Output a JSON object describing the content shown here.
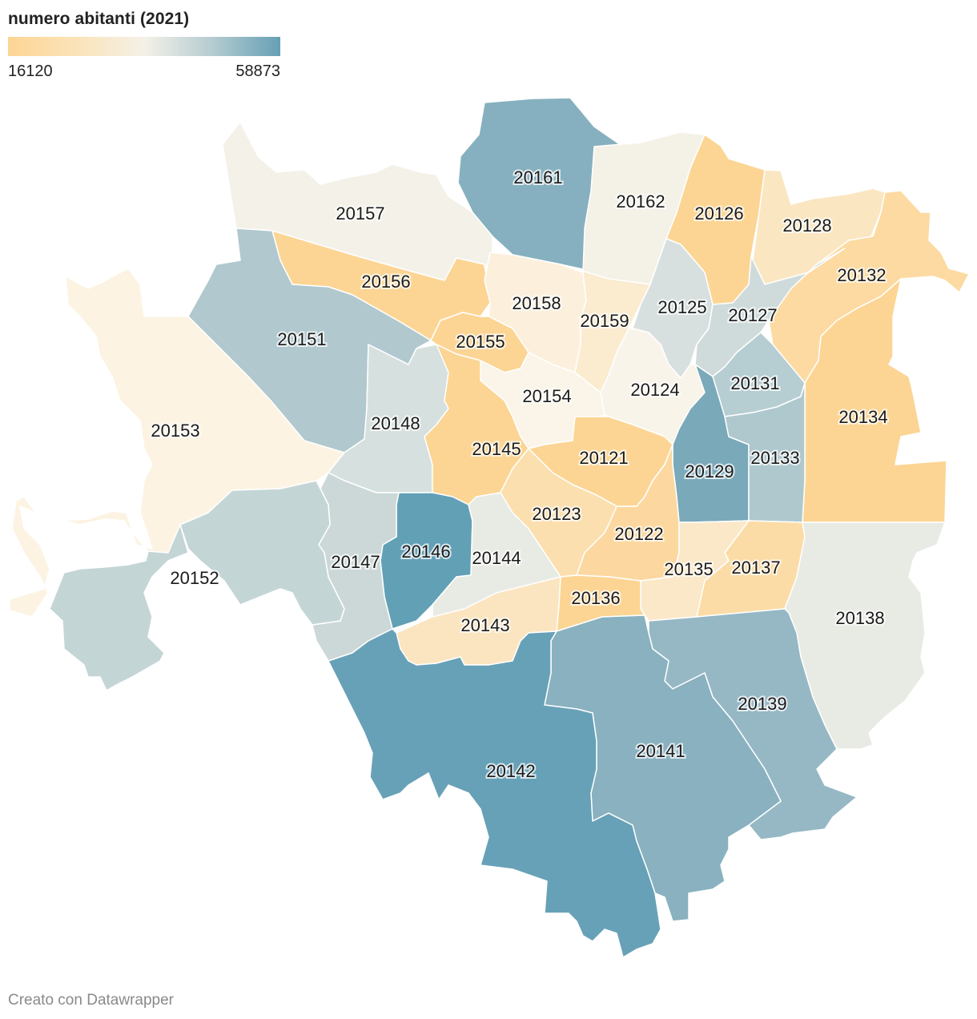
{
  "legend": {
    "title": "numero abitanti (2021)",
    "min_label": "16120",
    "max_label": "58873",
    "colors": [
      "#fcd594",
      "#fbe3b8",
      "#f4f1e7",
      "#b5ccd1",
      "#66a0b5"
    ]
  },
  "footer": "Creato con Datawrapper",
  "map_data": {
    "type": "choropleth",
    "regions": [
      {
        "code": "20157",
        "color": "#f3f1e8"
      },
      {
        "code": "20161",
        "color": "#86b0bf"
      },
      {
        "code": "20162",
        "color": "#f4f1e7"
      },
      {
        "code": "20126",
        "color": "#fcd594"
      },
      {
        "code": "20128",
        "color": "#fbe6c2"
      },
      {
        "code": "20132",
        "color": "#fcdaa1"
      },
      {
        "code": "20156",
        "color": "#fcd594"
      },
      {
        "code": "20151",
        "color": "#b0c8ce"
      },
      {
        "code": "20158",
        "color": "#fcf0dd"
      },
      {
        "code": "20159",
        "color": "#fbebcf"
      },
      {
        "code": "20125",
        "color": "#d7e0df"
      },
      {
        "code": "20127",
        "color": "#cfdbdb"
      },
      {
        "code": "20155",
        "color": "#fcd594"
      },
      {
        "code": "20153",
        "color": "#fcf3e2"
      },
      {
        "code": "20154",
        "color": "#fbf5e9"
      },
      {
        "code": "20124",
        "color": "#f9f4ea"
      },
      {
        "code": "20131",
        "color": "#b6cdd2"
      },
      {
        "code": "20134",
        "color": "#fcd594"
      },
      {
        "code": "20148",
        "color": "#d6e0df"
      },
      {
        "code": "20145",
        "color": "#fcd594"
      },
      {
        "code": "20121",
        "color": "#fcd594"
      },
      {
        "code": "20129",
        "color": "#7aa9ba"
      },
      {
        "code": "20133",
        "color": "#aec8ce"
      },
      {
        "code": "20123",
        "color": "#fbdfae"
      },
      {
        "code": "20122",
        "color": "#fcd8a0"
      },
      {
        "code": "20146",
        "color": "#62a0b6"
      },
      {
        "code": "20144",
        "color": "#e8ebe4"
      },
      {
        "code": "20147",
        "color": "#ccd8d8"
      },
      {
        "code": "20152",
        "color": "#c4d5d6"
      },
      {
        "code": "20135",
        "color": "#fbe8c8"
      },
      {
        "code": "20137",
        "color": "#fcdca6"
      },
      {
        "code": "20136",
        "color": "#fcd594"
      },
      {
        "code": "20143",
        "color": "#fbe5c0"
      },
      {
        "code": "20138",
        "color": "#e8ebe4"
      },
      {
        "code": "20139",
        "color": "#96b8c5"
      },
      {
        "code": "20141",
        "color": "#89b1c0"
      },
      {
        "code": "20142",
        "color": "#67a1b7"
      }
    ]
  }
}
